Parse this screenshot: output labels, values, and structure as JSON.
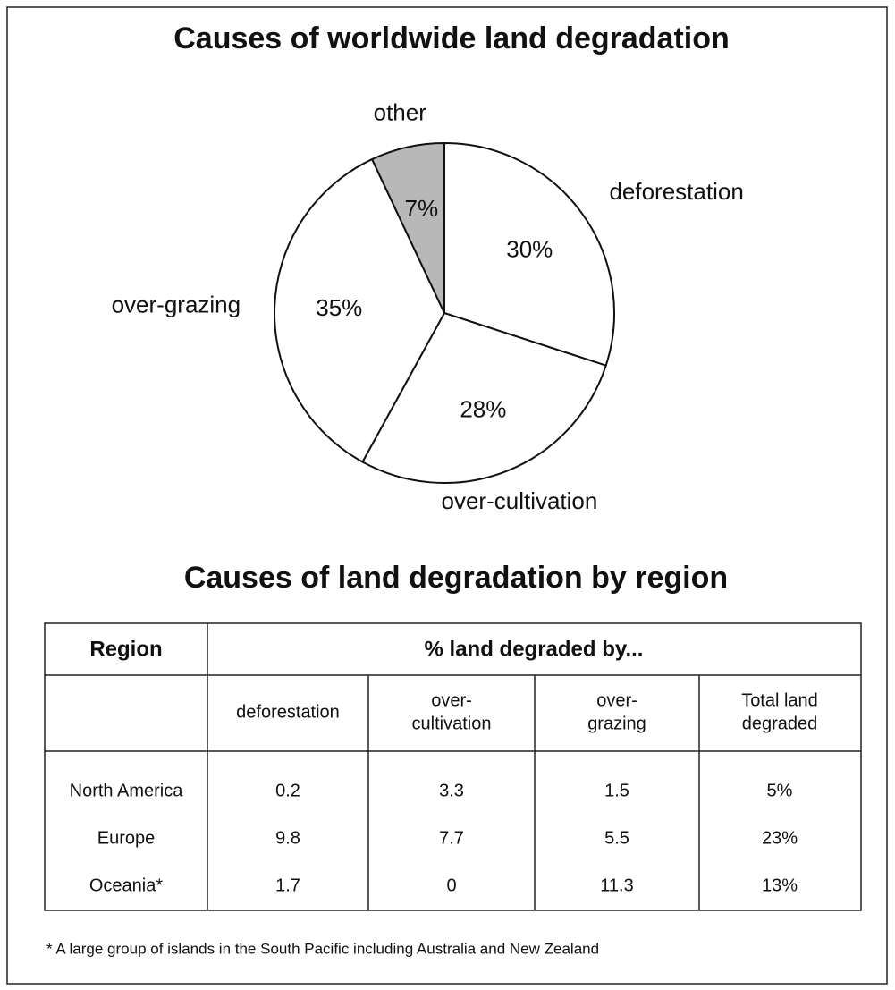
{
  "chart_data": {
    "type": "pie",
    "title": "Causes of worldwide land degradation",
    "categories": [
      "deforestation",
      "over-cultivation",
      "over-grazing",
      "other"
    ],
    "values": [
      30,
      28,
      35,
      7
    ],
    "value_labels": [
      "30%",
      "28%",
      "35%",
      "7%"
    ],
    "colors": [
      "#ffffff",
      "#ffffff",
      "#ffffff",
      "#b8b8b8"
    ]
  },
  "table": {
    "title": "Causes of land degradation by region",
    "header": [
      "Region",
      "% land degraded by..."
    ],
    "columns": [
      [
        "deforestation"
      ],
      [
        "over-",
        "cultivation"
      ],
      [
        "over-",
        "grazing"
      ],
      [
        "Total land",
        "degraded"
      ]
    ],
    "rows": [
      [
        "North America",
        "0.2",
        "3.3",
        "1.5",
        "5%"
      ],
      [
        "Europe",
        "9.8",
        "7.7",
        "5.5",
        "23%"
      ],
      [
        "Oceania*",
        "1.7",
        "0",
        "11.3",
        "13%"
      ]
    ]
  },
  "footnote": "* A large group of islands in the South Pacific including Australia and New Zealand"
}
